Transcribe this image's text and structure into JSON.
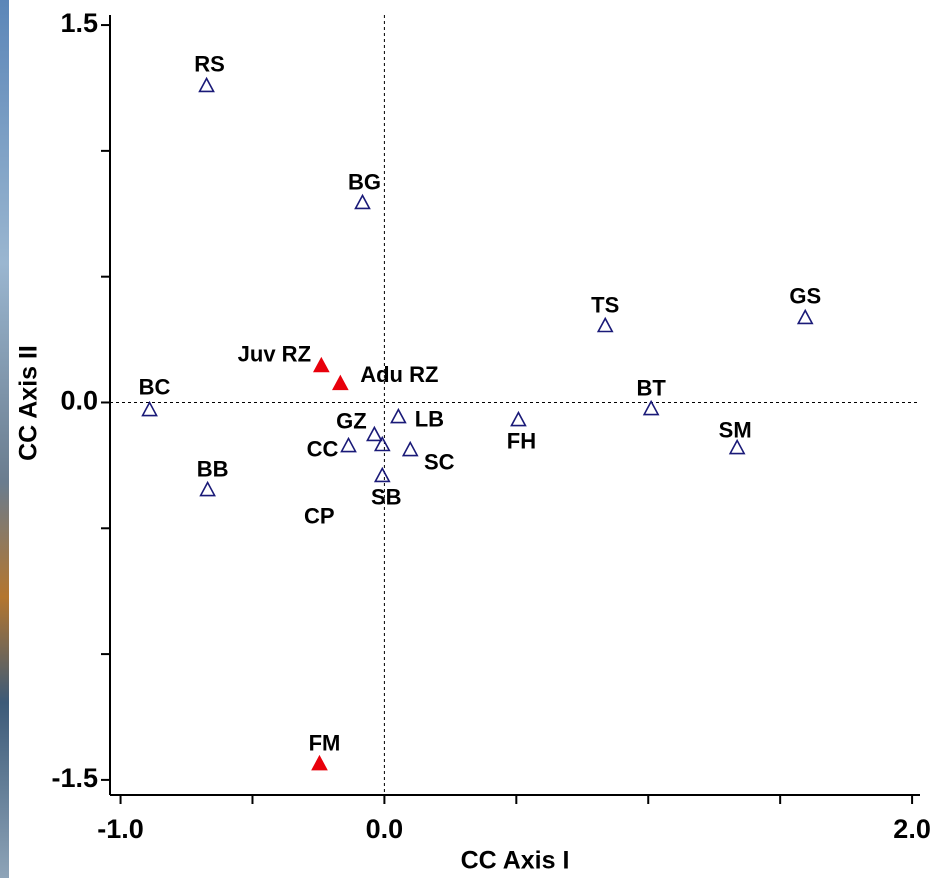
{
  "chart_data": {
    "type": "scatter",
    "x_label": "CC Axis I",
    "y_label": "CC Axis II",
    "xlim": [
      -1.04,
      2.03
    ],
    "ylim": [
      -1.56,
      1.54
    ],
    "xticks": [
      {
        "value": -1.0,
        "label": "-1.0"
      },
      {
        "value": 0.0,
        "label": "0.0"
      },
      {
        "value": 2.0,
        "label": "2.0"
      }
    ],
    "xminorticks": [
      -0.5,
      0.5,
      1.0,
      1.5
    ],
    "yticks": [
      {
        "value": -1.5,
        "label": "-1.5"
      },
      {
        "value": 0.0,
        "label": "0.0"
      },
      1.5
    ],
    "yminorticks": [
      -1.0,
      -0.5,
      0.5,
      1.0
    ],
    "zero_lines": true,
    "series": [
      {
        "color": "#1a1a78",
        "filled": false,
        "labels": [
          "RS",
          "BG",
          "TS",
          "GS",
          "BC",
          "BT",
          "LB",
          "FH",
          "GZ",
          "CC",
          "CP",
          "SC",
          "SB",
          "SM",
          "BB"
        ],
        "x": [
          -0.674,
          -0.083,
          0.837,
          1.595,
          -0.89,
          1.011,
          0.053,
          0.508,
          -0.038,
          -0.136,
          -0.008,
          0.098,
          -0.008,
          1.337,
          -0.67
        ],
        "y": [
          1.256,
          0.791,
          0.302,
          0.334,
          -0.032,
          -0.028,
          -0.06,
          -0.072,
          -0.131,
          -0.175,
          -0.171,
          -0.191,
          -0.294,
          -0.183,
          -0.35
        ]
      },
      {
        "color": "#e8000b",
        "filled": true,
        "labels": [
          "Juv RZ",
          "Adu RZ",
          "FM"
        ],
        "x": [
          -0.239,
          -0.167,
          -0.246
        ],
        "y": [
          0.143,
          0.072,
          -1.439
        ]
      }
    ]
  }
}
